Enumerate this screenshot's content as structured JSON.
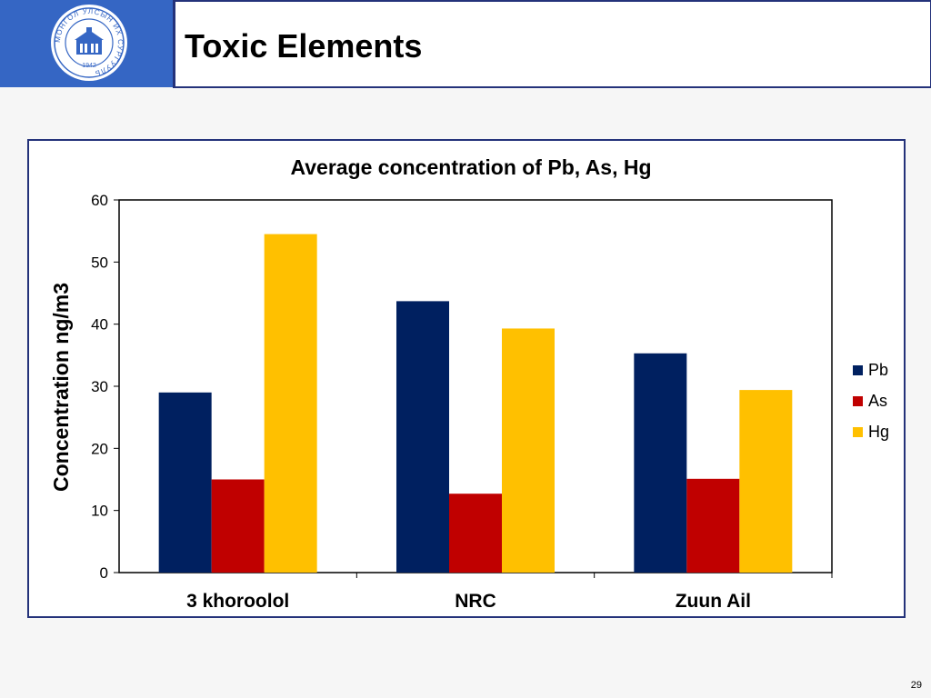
{
  "header": {
    "title": "Toxic Elements",
    "logo": {
      "icon": "university-seal-icon",
      "year": "1942",
      "ring_text": "МОНГОЛ УЛСЫН ИХ СУРГУУЛЬ"
    }
  },
  "page_number": "29",
  "colors": {
    "header_blue": "#3566c4",
    "frame_border": "#24327a",
    "Pb": "#002060",
    "As": "#c00000",
    "Hg": "#ffc000"
  },
  "chart_data": {
    "type": "bar",
    "title": "Average concentration of Pb, As, Hg",
    "xlabel": "",
    "ylabel": "Concentration ng/m3",
    "categories": [
      "3 khoroolol",
      "NRC",
      "Zuun Ail"
    ],
    "series": [
      {
        "name": "Pb",
        "color": "#002060",
        "values": [
          29,
          43.7,
          35.3
        ]
      },
      {
        "name": "As",
        "color": "#c00000",
        "values": [
          15,
          12.7,
          15.1
        ]
      },
      {
        "name": "Hg",
        "color": "#ffc000",
        "values": [
          54.5,
          39.3,
          29.4
        ]
      }
    ],
    "ylim": [
      0,
      60
    ],
    "yticks": [
      "0",
      "10",
      "20",
      "30",
      "40",
      "50",
      "60"
    ],
    "grid": false,
    "legend_position": "right"
  }
}
